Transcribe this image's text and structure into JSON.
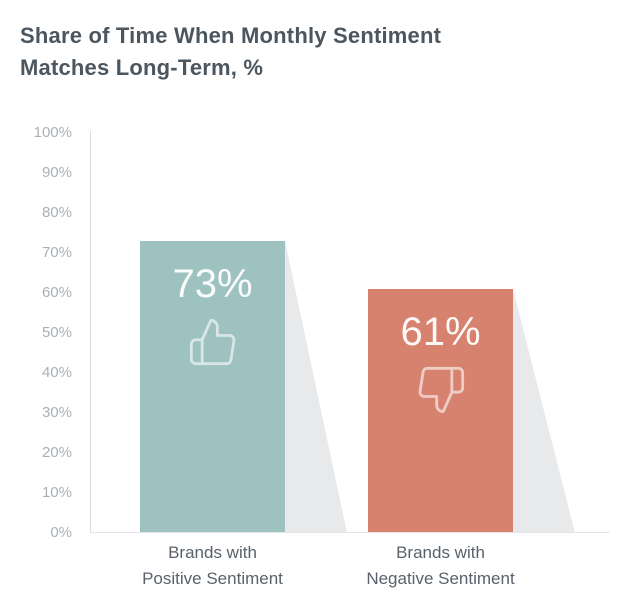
{
  "title": {
    "line1": "Share of Time When Monthly Sentiment",
    "line2": "Matches Long-Term, %"
  },
  "chart_data": {
    "type": "bar",
    "title": "Share of Time When Monthly Sentiment Matches Long-Term, %",
    "categories": [
      "Brands with Positive Sentiment",
      "Brands with Negative Sentiment"
    ],
    "values": [
      73,
      61
    ],
    "ylim": [
      0,
      100
    ],
    "y_ticks": [
      "100%",
      "90%",
      "80%",
      "70%",
      "60%",
      "50%",
      "40%",
      "30%",
      "20%",
      "10%",
      "0%"
    ],
    "grid": false,
    "legend": false,
    "bars": [
      {
        "value": 73,
        "value_label": "73%",
        "label_line1": "Brands with",
        "label_line2": "Positive Sentiment",
        "color": "#9EC2BF",
        "icon": "thumbs-up-icon"
      },
      {
        "value": 61,
        "value_label": "61%",
        "label_line1": "Brands with",
        "label_line2": "Negative Sentiment",
        "color": "#D6826F",
        "icon": "thumbs-down-icon"
      }
    ]
  },
  "colors": {
    "positive_bar": "#9EC2BF",
    "negative_bar": "#D6826F",
    "shadow": "#E7E9EB",
    "axis_line": "#DADDE0",
    "tick_text": "#A9B0B6",
    "title_text": "#4C565F",
    "category_text": "#59626A",
    "value_text": "#FFFFFF"
  }
}
